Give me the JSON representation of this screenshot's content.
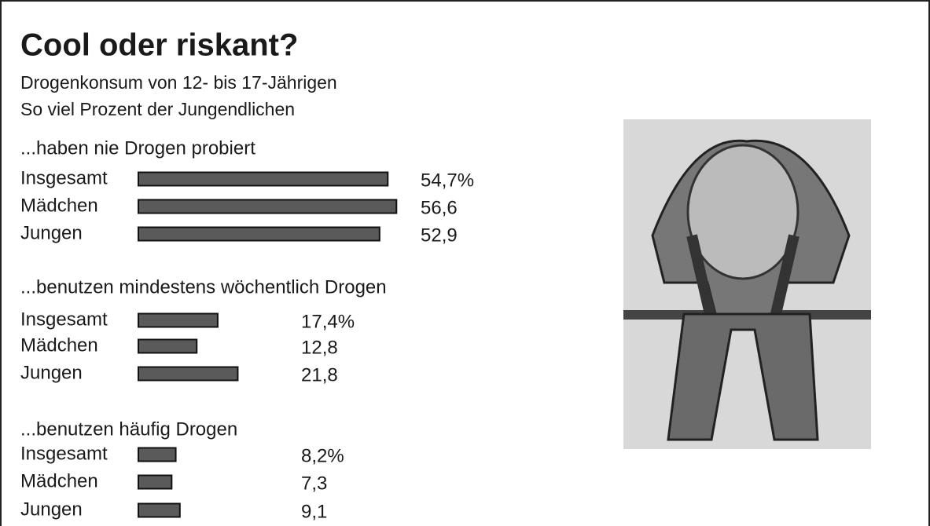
{
  "title": "Cool oder riskant?",
  "subtitle": [
    "Drogenkonsum von 12- bis 17-Jährigen",
    "So viel Prozent der Jungendlichen"
  ],
  "chart_data": [
    {
      "type": "bar",
      "title": "...haben nie Drogen probiert",
      "categories": [
        "Insgesamt",
        "Mädchen",
        "Jungen"
      ],
      "values": [
        54.7,
        56.6,
        52.9
      ],
      "value_labels": [
        "54,7%",
        "56,6",
        "52,9"
      ],
      "color": "#5a5a5a"
    },
    {
      "type": "bar",
      "title": "...benutzen mindestens wöchentlich Drogen",
      "categories": [
        "Insgesamt",
        "Mädchen",
        "Jungen"
      ],
      "values": [
        17.4,
        12.8,
        21.8
      ],
      "value_labels": [
        "17,4%",
        "12,8",
        "21,8"
      ],
      "color": "#5a5a5a"
    },
    {
      "type": "bar",
      "title": "...benutzen häufig Drogen",
      "categories": [
        "Insgesamt",
        "Mädchen",
        "Jungen"
      ],
      "values": [
        8.2,
        7.3,
        9.1
      ],
      "value_labels": [
        "8,2%",
        "7,3",
        "9,1"
      ],
      "color": "#5a5a5a"
    }
  ]
}
